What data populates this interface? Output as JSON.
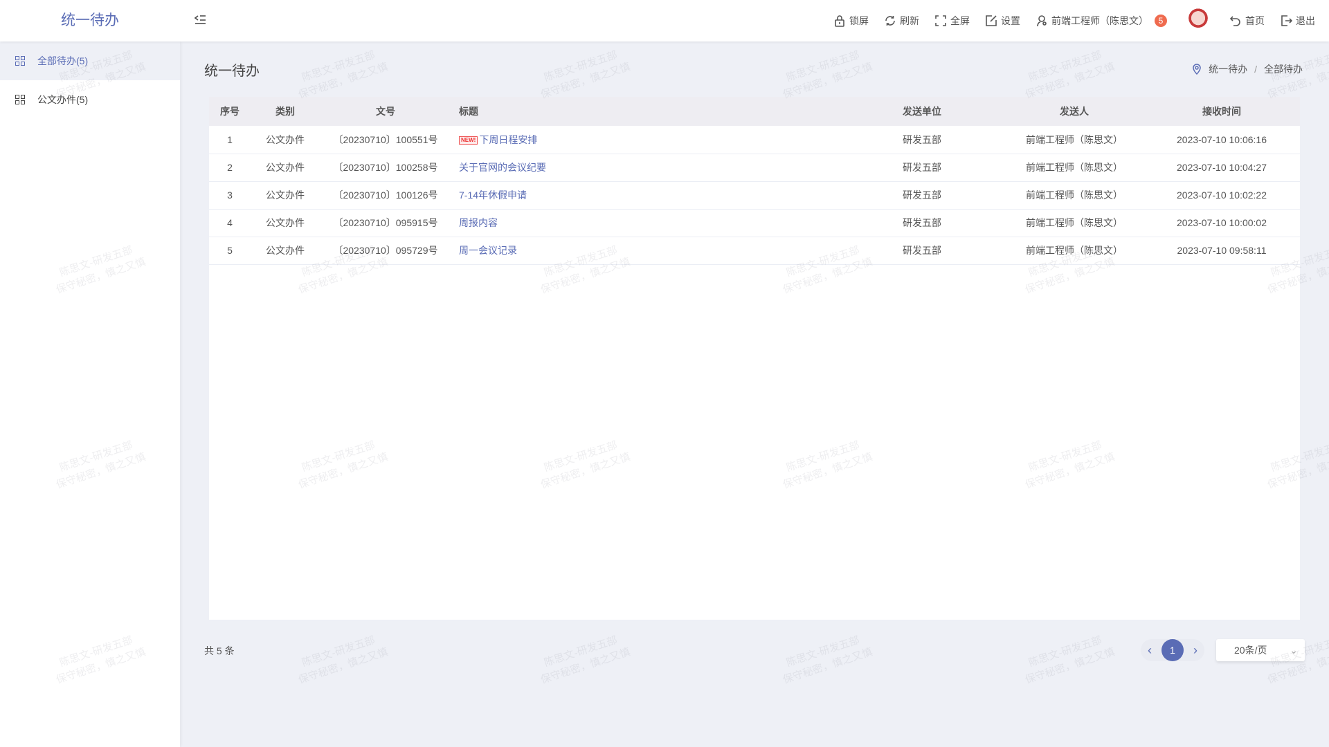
{
  "app": {
    "title": "统一待办"
  },
  "header": {
    "tools": [
      {
        "icon": "lock-icon",
        "label": "锁屏"
      },
      {
        "icon": "refresh-icon",
        "label": "刷新"
      },
      {
        "icon": "fullscreen-icon",
        "label": "全屏"
      },
      {
        "icon": "edit-icon",
        "label": "设置"
      },
      {
        "icon": "user-icon",
        "label": "前端工程师（陈思文）",
        "badge": "5"
      }
    ],
    "home": "首页",
    "logout": "退出"
  },
  "sidebar": {
    "items": [
      {
        "label": "全部待办(5)",
        "active": true
      },
      {
        "label": "公文办件(5)"
      }
    ]
  },
  "main": {
    "title": "统一待办",
    "breadcrumb": [
      "统一待办",
      "全部待办"
    ],
    "breadcrumb_sep": "/"
  },
  "table": {
    "columns": [
      "序号",
      "类别",
      "文号",
      "标题",
      "发送单位",
      "发送人",
      "接收时间"
    ],
    "new_tag": "NEW!",
    "rows": [
      {
        "no": "1",
        "type": "公文办件",
        "doc": "〔20230710〕100551号",
        "title": "下周日程安排",
        "is_new": true,
        "unit": "研发五部",
        "sender": "前端工程师（陈思文）",
        "time": "2023-07-10 10:06:16"
      },
      {
        "no": "2",
        "type": "公文办件",
        "doc": "〔20230710〕100258号",
        "title": "关于官网的会议纪要",
        "unit": "研发五部",
        "sender": "前端工程师（陈思文）",
        "time": "2023-07-10 10:04:27"
      },
      {
        "no": "3",
        "type": "公文办件",
        "doc": "〔20230710〕100126号",
        "title": "7-14年休假申请",
        "unit": "研发五部",
        "sender": "前端工程师（陈思文）",
        "time": "2023-07-10 10:02:22"
      },
      {
        "no": "4",
        "type": "公文办件",
        "doc": "〔20230710〕095915号",
        "title": "周报内容",
        "unit": "研发五部",
        "sender": "前端工程师（陈思文）",
        "time": "2023-07-10 10:00:02"
      },
      {
        "no": "5",
        "type": "公文办件",
        "doc": "〔20230710〕095729号",
        "title": "周一会议记录",
        "unit": "研发五部",
        "sender": "前端工程师（陈思文）",
        "time": "2023-07-10 09:58:11"
      }
    ]
  },
  "pagination": {
    "total": "共 5 条",
    "current": "1",
    "page_size": "20条/页"
  },
  "watermark": {
    "line1": "陈思文-研发五部",
    "line2": "保守秘密，慎之又慎"
  },
  "colors": {
    "accent": "#5a6cb5",
    "badge": "#ef6b4f",
    "background": "#eef0f6"
  }
}
